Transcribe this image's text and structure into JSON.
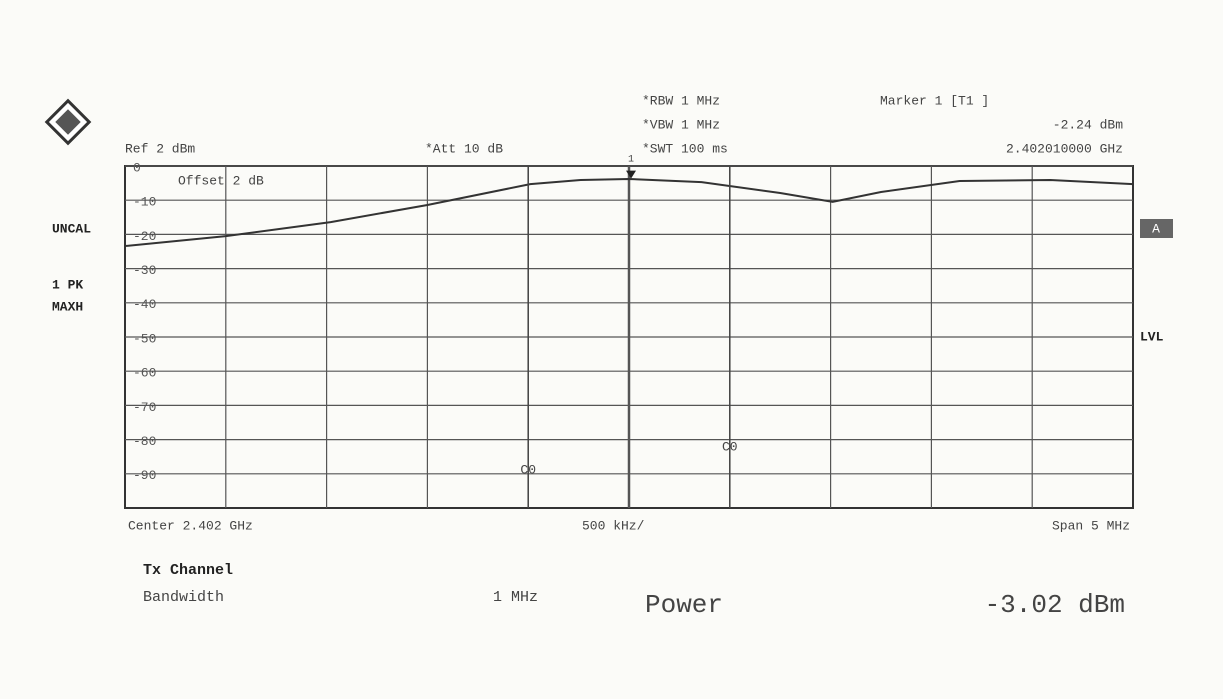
{
  "chart_data": {
    "type": "line",
    "header": {
      "ref": "Ref  2 dBm",
      "att": "*Att  10 dB",
      "rbw": "*RBW 1 MHz",
      "vbw": "*VBW 1 MHz",
      "swt": "*SWT 100 ms",
      "offset": "Offset  2 dB"
    },
    "side_labels": {
      "uncal": "UNCAL",
      "trace": "1 PK",
      "mode": "MAXH",
      "a": "A",
      "lvl": "LVL"
    },
    "footer": {
      "center": "Center 2.402 GHz",
      "div": "500 kHz/",
      "span": "Span 5 MHz"
    },
    "result": {
      "title": "Tx Channel",
      "bw_label": "Bandwidth",
      "bw_value": "1 MHz",
      "power_label": "Power",
      "power_value": "-3.02 dBm"
    },
    "xlim": [
      -2.5,
      2.5
    ],
    "ylim": [
      -100,
      0
    ],
    "yticks": [
      0,
      -10,
      -20,
      -30,
      -40,
      -50,
      -60,
      -70,
      -80,
      -90
    ],
    "grid": true,
    "series": [
      {
        "name": "1 PK MAXH",
        "color": "#333333",
        "x": [
          -2.5,
          -2.0,
          -1.48,
          -1.0,
          -0.49,
          -0.24,
          0,
          0.36,
          0.75,
          1.01,
          1.25,
          1.64,
          2.09,
          2.5
        ],
        "values": [
          -23.4,
          -20.5,
          -16.4,
          -11.4,
          -5.3,
          -4.1,
          -3.8,
          -4.7,
          -7.9,
          -10.5,
          -7.6,
          -4.4,
          -4.1,
          -5.3
        ]
      }
    ],
    "marker": {
      "name": "1",
      "x": 0.01,
      "y": -2.24,
      "label": "Marker 1 [T1 ]",
      "value_label": "-2.24 dBm",
      "freq_label": "2.402010000 GHz"
    },
    "channel_lines": [
      {
        "x": -0.5,
        "label": "C0"
      },
      {
        "x": 0.5,
        "label": "C0"
      }
    ]
  }
}
